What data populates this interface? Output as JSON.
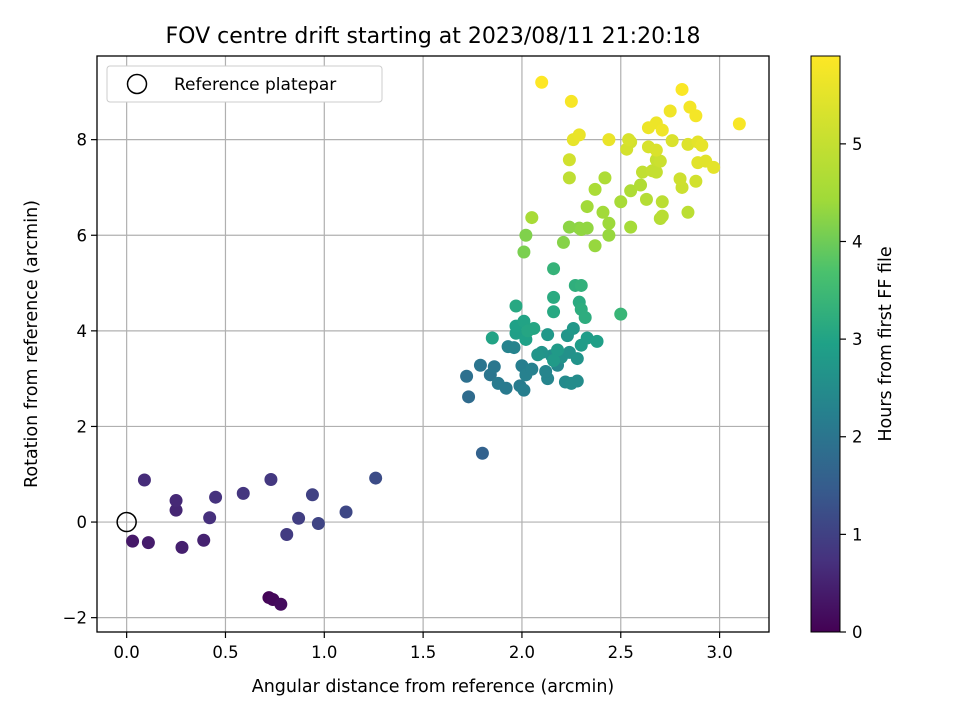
{
  "chart_data": {
    "type": "scatter",
    "title": "FOV centre drift starting at 2023/08/11 21:20:18",
    "xlabel": "Angular distance from reference (arcmin)",
    "ylabel": "Rotation from reference (arcmin)",
    "xlim": [
      -0.15,
      3.25
    ],
    "ylim": [
      -2.3,
      9.75
    ],
    "xticks": [
      "0.0",
      "0.5",
      "1.0",
      "1.5",
      "2.0",
      "2.5",
      "3.0"
    ],
    "yticks": [
      "−2",
      "0",
      "2",
      "4",
      "6",
      "8"
    ],
    "grid": true,
    "legend": {
      "placement": "top-left",
      "entries": [
        "Reference platepar"
      ]
    },
    "reference_point": {
      "x": 0.0,
      "y": 0.0
    },
    "colorbar": {
      "label": "Hours from first FF file",
      "range": [
        0,
        5.9
      ],
      "ticks": [
        "0",
        "1",
        "2",
        "3",
        "4",
        "5"
      ],
      "colormap": "viridis"
    },
    "points": [
      {
        "x": 0.72,
        "y": -1.58,
        "t": 0.05
      },
      {
        "x": 0.74,
        "y": -1.62,
        "t": 0.1
      },
      {
        "x": 0.78,
        "y": -1.72,
        "t": 0.15
      },
      {
        "x": 0.03,
        "y": -0.4,
        "t": 0.35
      },
      {
        "x": 0.11,
        "y": -0.43,
        "t": 0.4
      },
      {
        "x": 0.28,
        "y": -0.53,
        "t": 0.45
      },
      {
        "x": 0.39,
        "y": -0.38,
        "t": 0.5
      },
      {
        "x": 0.25,
        "y": 0.25,
        "t": 0.55
      },
      {
        "x": 0.25,
        "y": 0.45,
        "t": 0.6
      },
      {
        "x": 0.09,
        "y": 0.88,
        "t": 0.65
      },
      {
        "x": 0.42,
        "y": 0.09,
        "t": 0.7
      },
      {
        "x": 0.45,
        "y": 0.52,
        "t": 0.75
      },
      {
        "x": 0.59,
        "y": 0.6,
        "t": 0.8
      },
      {
        "x": 0.73,
        "y": 0.89,
        "t": 0.85
      },
      {
        "x": 0.81,
        "y": -0.26,
        "t": 0.9
      },
      {
        "x": 0.87,
        "y": 0.08,
        "t": 0.95
      },
      {
        "x": 0.94,
        "y": 0.57,
        "t": 1.0
      },
      {
        "x": 0.97,
        "y": -0.03,
        "t": 1.05
      },
      {
        "x": 1.11,
        "y": 0.21,
        "t": 1.1
      },
      {
        "x": 1.26,
        "y": 0.92,
        "t": 1.2
      },
      {
        "x": 1.8,
        "y": 1.44,
        "t": 1.6
      },
      {
        "x": 1.73,
        "y": 2.62,
        "t": 1.8
      },
      {
        "x": 1.72,
        "y": 3.05,
        "t": 1.9
      },
      {
        "x": 1.79,
        "y": 3.28,
        "t": 2.0
      },
      {
        "x": 1.84,
        "y": 3.08,
        "t": 2.0
      },
      {
        "x": 1.86,
        "y": 3.25,
        "t": 2.05
      },
      {
        "x": 1.88,
        "y": 2.9,
        "t": 2.1
      },
      {
        "x": 1.92,
        "y": 2.8,
        "t": 2.1
      },
      {
        "x": 1.99,
        "y": 2.85,
        "t": 2.15
      },
      {
        "x": 2.01,
        "y": 2.76,
        "t": 2.2
      },
      {
        "x": 2.0,
        "y": 3.27,
        "t": 2.2
      },
      {
        "x": 2.02,
        "y": 3.08,
        "t": 2.25
      },
      {
        "x": 2.05,
        "y": 3.2,
        "t": 2.25
      },
      {
        "x": 1.93,
        "y": 3.67,
        "t": 2.3
      },
      {
        "x": 1.96,
        "y": 3.65,
        "t": 2.3
      },
      {
        "x": 2.13,
        "y": 3.0,
        "t": 2.35
      },
      {
        "x": 2.12,
        "y": 3.15,
        "t": 2.35
      },
      {
        "x": 2.18,
        "y": 3.28,
        "t": 2.4
      },
      {
        "x": 2.22,
        "y": 2.93,
        "t": 2.45
      },
      {
        "x": 2.25,
        "y": 2.9,
        "t": 2.5
      },
      {
        "x": 2.28,
        "y": 2.95,
        "t": 2.5
      },
      {
        "x": 2.15,
        "y": 3.48,
        "t": 2.55
      },
      {
        "x": 2.2,
        "y": 3.45,
        "t": 2.6
      },
      {
        "x": 2.24,
        "y": 3.55,
        "t": 2.6
      },
      {
        "x": 2.28,
        "y": 3.42,
        "t": 2.65
      },
      {
        "x": 2.1,
        "y": 3.55,
        "t": 2.65
      },
      {
        "x": 2.08,
        "y": 3.5,
        "t": 2.7
      },
      {
        "x": 2.23,
        "y": 3.9,
        "t": 2.7
      },
      {
        "x": 2.26,
        "y": 4.05,
        "t": 2.75
      },
      {
        "x": 2.13,
        "y": 3.92,
        "t": 2.75
      },
      {
        "x": 2.18,
        "y": 3.6,
        "t": 2.8
      },
      {
        "x": 2.16,
        "y": 3.38,
        "t": 2.8
      },
      {
        "x": 2.3,
        "y": 3.7,
        "t": 2.85
      },
      {
        "x": 2.33,
        "y": 3.85,
        "t": 2.85
      },
      {
        "x": 2.38,
        "y": 3.78,
        "t": 2.9
      },
      {
        "x": 1.97,
        "y": 3.95,
        "t": 2.9
      },
      {
        "x": 1.97,
        "y": 4.1,
        "t": 2.95
      },
      {
        "x": 2.02,
        "y": 3.82,
        "t": 2.95
      },
      {
        "x": 2.01,
        "y": 4.2,
        "t": 3.0
      },
      {
        "x": 1.85,
        "y": 3.85,
        "t": 3.0
      },
      {
        "x": 2.06,
        "y": 4.05,
        "t": 3.05
      },
      {
        "x": 2.03,
        "y": 4.0,
        "t": 3.05
      },
      {
        "x": 1.97,
        "y": 4.52,
        "t": 3.1
      },
      {
        "x": 2.16,
        "y": 4.4,
        "t": 3.1
      },
      {
        "x": 2.16,
        "y": 4.7,
        "t": 3.15
      },
      {
        "x": 2.29,
        "y": 4.6,
        "t": 3.15
      },
      {
        "x": 2.3,
        "y": 4.45,
        "t": 3.2
      },
      {
        "x": 2.32,
        "y": 4.28,
        "t": 3.2
      },
      {
        "x": 2.27,
        "y": 4.95,
        "t": 3.25
      },
      {
        "x": 2.3,
        "y": 4.95,
        "t": 3.3
      },
      {
        "x": 2.16,
        "y": 5.3,
        "t": 3.35
      },
      {
        "x": 2.5,
        "y": 4.35,
        "t": 3.4
      },
      {
        "x": 2.01,
        "y": 5.65,
        "t": 4.1
      },
      {
        "x": 2.02,
        "y": 6.0,
        "t": 4.15
      },
      {
        "x": 2.21,
        "y": 5.85,
        "t": 4.2
      },
      {
        "x": 2.24,
        "y": 6.17,
        "t": 4.25
      },
      {
        "x": 2.29,
        "y": 6.15,
        "t": 4.25
      },
      {
        "x": 2.3,
        "y": 6.12,
        "t": 4.3
      },
      {
        "x": 2.33,
        "y": 6.15,
        "t": 4.3
      },
      {
        "x": 2.37,
        "y": 5.78,
        "t": 4.35
      },
      {
        "x": 2.44,
        "y": 6.0,
        "t": 4.35
      },
      {
        "x": 2.44,
        "y": 6.25,
        "t": 4.4
      },
      {
        "x": 2.41,
        "y": 6.48,
        "t": 4.45
      },
      {
        "x": 2.33,
        "y": 6.6,
        "t": 4.45
      },
      {
        "x": 2.55,
        "y": 6.17,
        "t": 4.5
      },
      {
        "x": 2.5,
        "y": 6.7,
        "t": 4.55
      },
      {
        "x": 2.05,
        "y": 6.37,
        "t": 4.55
      },
      {
        "x": 2.37,
        "y": 6.96,
        "t": 4.6
      },
      {
        "x": 2.42,
        "y": 7.2,
        "t": 4.65
      },
      {
        "x": 2.55,
        "y": 6.93,
        "t": 4.65
      },
      {
        "x": 2.6,
        "y": 7.05,
        "t": 4.7
      },
      {
        "x": 2.63,
        "y": 6.75,
        "t": 4.75
      },
      {
        "x": 2.7,
        "y": 6.35,
        "t": 4.75
      },
      {
        "x": 2.71,
        "y": 6.4,
        "t": 4.8
      },
      {
        "x": 2.71,
        "y": 6.7,
        "t": 4.85
      },
      {
        "x": 2.84,
        "y": 6.48,
        "t": 4.85
      },
      {
        "x": 2.24,
        "y": 7.2,
        "t": 4.9
      },
      {
        "x": 2.61,
        "y": 7.32,
        "t": 4.95
      },
      {
        "x": 2.66,
        "y": 7.35,
        "t": 5.0
      },
      {
        "x": 2.68,
        "y": 7.32,
        "t": 5.0
      },
      {
        "x": 2.68,
        "y": 7.58,
        "t": 5.05
      },
      {
        "x": 2.7,
        "y": 7.55,
        "t": 5.1
      },
      {
        "x": 2.81,
        "y": 7.0,
        "t": 5.1
      },
      {
        "x": 2.8,
        "y": 7.18,
        "t": 5.15
      },
      {
        "x": 2.88,
        "y": 7.13,
        "t": 5.2
      },
      {
        "x": 2.24,
        "y": 7.58,
        "t": 5.2
      },
      {
        "x": 2.53,
        "y": 7.8,
        "t": 5.25
      },
      {
        "x": 2.55,
        "y": 7.95,
        "t": 5.25
      },
      {
        "x": 2.54,
        "y": 8.0,
        "t": 5.3
      },
      {
        "x": 2.64,
        "y": 7.85,
        "t": 5.3
      },
      {
        "x": 2.68,
        "y": 7.78,
        "t": 5.35
      },
      {
        "x": 2.76,
        "y": 7.98,
        "t": 5.35
      },
      {
        "x": 2.84,
        "y": 7.9,
        "t": 5.4
      },
      {
        "x": 2.89,
        "y": 7.52,
        "t": 5.45
      },
      {
        "x": 2.93,
        "y": 7.55,
        "t": 5.45
      },
      {
        "x": 2.97,
        "y": 7.42,
        "t": 5.5
      },
      {
        "x": 2.89,
        "y": 7.95,
        "t": 5.5
      },
      {
        "x": 2.91,
        "y": 7.88,
        "t": 5.55
      },
      {
        "x": 2.26,
        "y": 8.0,
        "t": 5.55
      },
      {
        "x": 2.29,
        "y": 8.1,
        "t": 5.6
      },
      {
        "x": 2.44,
        "y": 8.0,
        "t": 5.6
      },
      {
        "x": 2.64,
        "y": 8.25,
        "t": 5.65
      },
      {
        "x": 2.68,
        "y": 8.35,
        "t": 5.65
      },
      {
        "x": 2.71,
        "y": 8.2,
        "t": 5.7
      },
      {
        "x": 2.75,
        "y": 8.6,
        "t": 5.7
      },
      {
        "x": 2.85,
        "y": 8.68,
        "t": 5.75
      },
      {
        "x": 2.88,
        "y": 8.5,
        "t": 5.75
      },
      {
        "x": 3.1,
        "y": 8.33,
        "t": 5.8
      },
      {
        "x": 2.25,
        "y": 8.8,
        "t": 5.8
      },
      {
        "x": 2.81,
        "y": 9.05,
        "t": 5.85
      },
      {
        "x": 2.1,
        "y": 9.2,
        "t": 5.9
      }
    ]
  }
}
